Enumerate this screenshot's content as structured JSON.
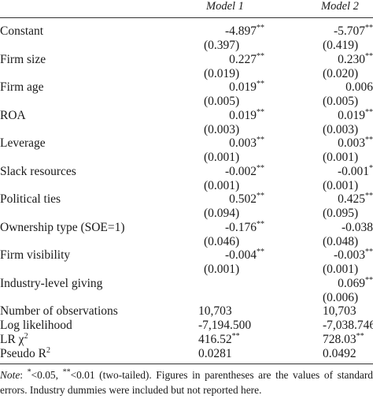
{
  "header": {
    "model1": "Model 1",
    "model2": "Model 2"
  },
  "rows": [
    {
      "label": "Constant",
      "m1": "-4.897",
      "m1s": "**",
      "m2": "-5.707",
      "m2s": "**",
      "se1": "(0.397)",
      "se2": "(0.419)"
    },
    {
      "label": "Firm size",
      "m1": "0.227",
      "m1s": "**",
      "m2": "0.230",
      "m2s": "**",
      "se1": "(0.019)",
      "se2": "(0.020)"
    },
    {
      "label": "Firm age",
      "m1": "0.019",
      "m1s": "**",
      "m2": "0.006",
      "m2s": "",
      "se1": "(0.005)",
      "se2": "(0.005)"
    },
    {
      "label": "ROA",
      "m1": "0.019",
      "m1s": "**",
      "m2": "0.019",
      "m2s": "**",
      "se1": "(0.003)",
      "se2": "(0.003)"
    },
    {
      "label": "Leverage",
      "m1": "0.003",
      "m1s": "**",
      "m2": "0.003",
      "m2s": "**",
      "se1": "(0.001)",
      "se2": "(0.001)"
    },
    {
      "label": "Slack resources",
      "m1": "-0.002",
      "m1s": "**",
      "m2": "-0.001",
      "m2s": "*",
      "se1": "(0.001)",
      "se2": "(0.001)"
    },
    {
      "label": "Political ties",
      "m1": "0.502",
      "m1s": "**",
      "m2": "0.425",
      "m2s": "**",
      "se1": "(0.094)",
      "se2": "(0.095)"
    },
    {
      "label": "Ownership type (SOE=1)",
      "m1": "-0.176",
      "m1s": "**",
      "m2": "-0.038",
      "m2s": "",
      "se1": "(0.046)",
      "se2": "(0.048)"
    },
    {
      "label": "Firm visibility",
      "m1": "-0.004",
      "m1s": "**",
      "m2": "-0.003",
      "m2s": "**",
      "se1": "(0.001)",
      "se2": "(0.001)"
    },
    {
      "label": "Industry-level giving",
      "m1": "",
      "m1s": "",
      "m2": "0.069",
      "m2s": "**",
      "se1": "",
      "se2": "(0.006)"
    }
  ],
  "stats": {
    "obs": {
      "label": "Number of observations",
      "m1": "10,703",
      "m2": "10,703"
    },
    "ll": {
      "label": "Log likelihood",
      "m1": "-7,194.500",
      "m2": "-7,038.746"
    },
    "lr": {
      "label": "LR χ",
      "label_sup": "2",
      "m1": "416.52",
      "m1s": "**",
      "m2": "728.03",
      "m2s": "**"
    },
    "r2": {
      "label": "Pseudo R",
      "label_sup": "2",
      "m1": "0.0281",
      "m2": "0.0492"
    }
  },
  "note": {
    "lead": "Note",
    "s1": "*",
    "t1": "<0.05, ",
    "s2": "**",
    "t2": "<0.01 (two-tailed). Figures in parentheses are the values of standard errors. Industry dummies were included but not reported here."
  }
}
